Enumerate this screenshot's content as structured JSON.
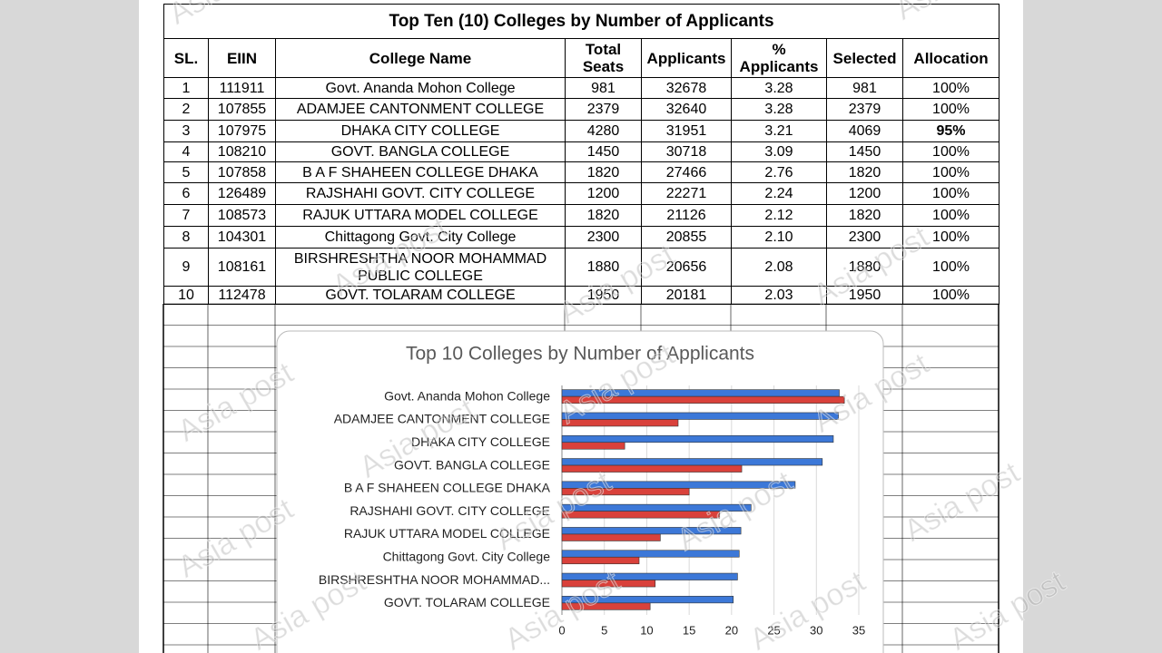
{
  "table": {
    "title": "Top Ten (10) Colleges by Number of Applicants",
    "headers": [
      "SL.",
      "EIIN",
      "College Name",
      "Total Seats",
      "Applicants",
      "% Applicants",
      "Selected",
      "Allocation"
    ],
    "rows": [
      [
        "1",
        "111911",
        "Govt. Ananda Mohon College",
        "981",
        "32678",
        "3.28",
        "981",
        "100%"
      ],
      [
        "2",
        "107855",
        "ADAMJEE CANTONMENT COLLEGE",
        "2379",
        "32640",
        "3.28",
        "2379",
        "100%"
      ],
      [
        "3",
        "107975",
        "DHAKA CITY COLLEGE",
        "4280",
        "31951",
        "3.21",
        "4069",
        "95%"
      ],
      [
        "4",
        "108210",
        "GOVT. BANGLA COLLEGE",
        "1450",
        "30718",
        "3.09",
        "1450",
        "100%"
      ],
      [
        "5",
        "107858",
        "B A F SHAHEEN COLLEGE DHAKA",
        "1820",
        "27466",
        "2.76",
        "1820",
        "100%"
      ],
      [
        "6",
        "126489",
        "RAJSHAHI GOVT. CITY COLLEGE",
        "1200",
        "22271",
        "2.24",
        "1200",
        "100%"
      ],
      [
        "7",
        "108573",
        "RAJUK UTTARA MODEL COLLEGE",
        "1820",
        "21126",
        "2.12",
        "1820",
        "100%"
      ],
      [
        "8",
        "104301",
        "Chittagong Govt. City College",
        "2300",
        "20855",
        "2.10",
        "2300",
        "100%"
      ],
      [
        "9",
        "108161",
        "BIRSHRESHTHA NOOR MOHAMMAD PUBLIC COLLEGE",
        "1880",
        "20656",
        "2.08",
        "1880",
        "100%"
      ],
      [
        "10",
        "112478",
        "GOVT. TOLARAM COLLEGE",
        "1950",
        "20181",
        "2.03",
        "1950",
        "100%"
      ]
    ]
  },
  "watermark": "Asia post",
  "chart_data": {
    "type": "hbar",
    "title": "Top 10 Colleges by Number of Applicants",
    "categories": [
      "Govt. Ananda Mohon College",
      "ADAMJEE CANTONMENT COLLEGE",
      "DHAKA CITY COLLEGE",
      "GOVT. BANGLA COLLEGE",
      "B A F SHAHEEN COLLEGE DHAKA",
      "RAJSHAHI GOVT. CITY COLLEGE",
      "RAJUK UTTARA MODEL COLLEGE",
      "Chittagong Govt. City College",
      "BIRSHRESHTHA NOOR MOHAMMAD...",
      "GOVT. TOLARAM COLLEGE"
    ],
    "series": [
      {
        "color": "#3c78d8",
        "values": [
          32.7,
          32.6,
          32.0,
          30.7,
          27.5,
          22.3,
          21.1,
          20.9,
          20.7,
          20.2
        ]
      },
      {
        "color": "#d9413b",
        "values": [
          33.3,
          13.7,
          7.4,
          21.2,
          15.0,
          18.6,
          11.6,
          9.1,
          11.0,
          10.4
        ]
      }
    ],
    "xlim": [
      0,
      35
    ],
    "xticks": [
      0,
      5,
      10,
      15,
      20,
      25,
      30,
      35
    ],
    "grid": true
  }
}
